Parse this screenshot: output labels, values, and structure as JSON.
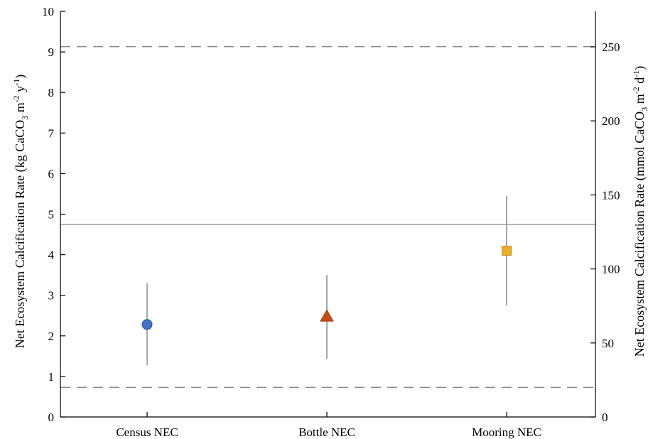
{
  "chart_data": {
    "type": "scatter",
    "categories": [
      "Census NEC",
      "Bottle NEC",
      "Mooring NEC"
    ],
    "series": [
      {
        "values": [
          2.28,
          2.48,
          4.1
        ],
        "error_low": [
          1.28,
          1.43,
          2.75
        ],
        "error_high": [
          3.3,
          3.5,
          5.45
        ],
        "markers": [
          "circle",
          "triangle",
          "square"
        ],
        "colors": [
          "#4472c4",
          "#c0501a",
          "#e8b030"
        ]
      }
    ],
    "ylim": [
      0,
      10
    ],
    "y_ticks": [
      "0",
      "1",
      "2",
      "3",
      "4",
      "5",
      "6",
      "7",
      "8",
      "9",
      "10"
    ],
    "y2lim": [
      0,
      273.97
    ],
    "y2_ticks": [
      "0",
      "50",
      "100",
      "150",
      "200",
      "250"
    ],
    "ylabel_left": [
      "Net Ecosystem Calcification Rate (kg CaCO",
      "3",
      " m",
      "-2",
      " y",
      "-1",
      ")"
    ],
    "ylabel_right": [
      "Net Ecosystem Calcification Rate (mmol CaCO",
      "3",
      " m",
      "-2",
      " d",
      "-1",
      ")"
    ],
    "reference_lines": [
      {
        "y": 4.75,
        "style": "solid",
        "color": "#999999"
      },
      {
        "y": 9.13,
        "style": "dashed",
        "color": "#888888"
      },
      {
        "y": 0.73,
        "style": "dashed",
        "color": "#888888"
      }
    ],
    "grid": false,
    "legend": "none"
  }
}
